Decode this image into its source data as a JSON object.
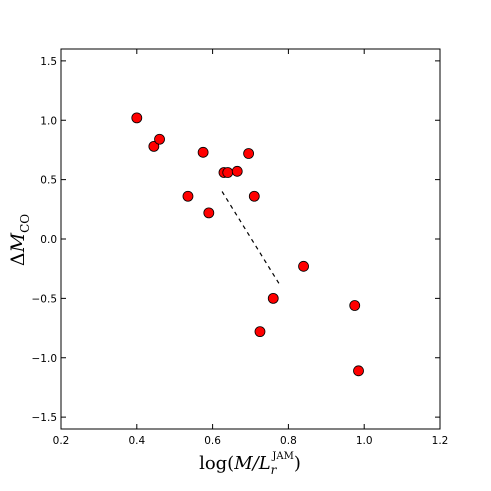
{
  "chart_data": {
    "type": "scatter",
    "title": "",
    "xlabel": {
      "prefix": "log(",
      "main": "M/L",
      "sub": "r",
      "sup": "JAM",
      "suffix": ")"
    },
    "ylabel": {
      "prefix": "Δ",
      "main": "M",
      "sub": "CO"
    },
    "xlim": [
      0.2,
      1.2
    ],
    "ylim": [
      -1.6,
      1.6
    ],
    "xticks": [
      0.2,
      0.4,
      0.6,
      0.8,
      1.0,
      1.2
    ],
    "xtick_labels": [
      "0.2",
      "0.4",
      "0.6",
      "0.8",
      "1.0",
      "1.2"
    ],
    "yticks": [
      -1.5,
      -1.0,
      -0.5,
      0.0,
      0.5,
      1.0,
      1.5
    ],
    "ytick_labels": [
      "−1.5",
      "−1.0",
      "−0.5",
      "0.0",
      "0.5",
      "1.0",
      "1.5"
    ],
    "grid": false,
    "marker_color": "#ff0000",
    "points": [
      {
        "x": 0.4,
        "y": 1.02
      },
      {
        "x": 0.445,
        "y": 0.78
      },
      {
        "x": 0.46,
        "y": 0.84
      },
      {
        "x": 0.535,
        "y": 0.36
      },
      {
        "x": 0.575,
        "y": 0.73
      },
      {
        "x": 0.59,
        "y": 0.22
      },
      {
        "x": 0.63,
        "y": 0.56
      },
      {
        "x": 0.64,
        "y": 0.56
      },
      {
        "x": 0.665,
        "y": 0.57
      },
      {
        "x": 0.695,
        "y": 0.72
      },
      {
        "x": 0.71,
        "y": 0.36
      },
      {
        "x": 0.725,
        "y": -0.78
      },
      {
        "x": 0.76,
        "y": -0.5
      },
      {
        "x": 0.84,
        "y": -0.23
      },
      {
        "x": 0.975,
        "y": -0.56
      },
      {
        "x": 0.985,
        "y": -1.11
      }
    ],
    "fit_line": {
      "x": [
        0.625,
        0.78
      ],
      "y": [
        0.4,
        -0.4
      ],
      "style": "dashed"
    }
  }
}
